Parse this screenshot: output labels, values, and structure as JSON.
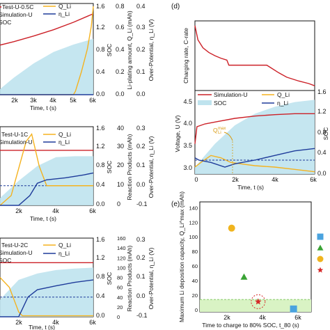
{
  "colors": {
    "red": "#cc2027",
    "orange": "#f5b21e",
    "navy": "#1e3b9a",
    "soc_fill": "#bfe3ee",
    "green_band": "#d9f3c4",
    "dashed": "#1e3b9a",
    "marker_square": "#4aa3df",
    "marker_triangle": "#3aa335",
    "marker_circle": "#f0b41e",
    "marker_star": "#d62a2a"
  },
  "chart_data": [
    {
      "panel_id": "a",
      "type": "line",
      "title": "",
      "legend": [
        "Test-U-0.5C",
        "Simulation-U",
        "SOC",
        "Q_Li",
        "η_Li"
      ],
      "xlabel": "Time, t (s)",
      "x_ticks": [
        "2k",
        "3k",
        "4k",
        "5k",
        "6k"
      ],
      "x_range": [
        1300,
        6000
      ],
      "y_axes": [
        {
          "label": "SOC",
          "ticks": [
            "0.0",
            "0.4",
            "0.8",
            "1.2",
            "1.6"
          ],
          "range": [
            0,
            1.6
          ]
        },
        {
          "label": "Li-plating amount, Q_Li (mAh)",
          "ticks": [
            "0.0",
            "0.2",
            "0.4",
            "0.6",
            "0.8"
          ],
          "range": [
            0,
            0.8
          ]
        },
        {
          "label": "Over-Potential, η_Li (V)",
          "ticks": [
            "0.0",
            "0.1",
            "0.2",
            "0.3",
            "0.4"
          ],
          "range": [
            0,
            0.4
          ]
        }
      ],
      "series": [
        {
          "name": "Simulation-U",
          "color": "red",
          "x": [
            1300,
            2000,
            3000,
            4000,
            5000,
            6000
          ],
          "y": [
            0.87,
            0.93,
            1.03,
            1.14,
            1.27,
            1.42
          ]
        },
        {
          "name": "Q_Li",
          "color": "orange",
          "x": [
            1300,
            4500,
            5000,
            5100,
            5400,
            5700,
            5900,
            6000
          ],
          "y": [
            0.0,
            0.0,
            0.0,
            0.06,
            0.4,
            0.8,
            1.2,
            1.55
          ]
        },
        {
          "name": "η_Li",
          "color": "navy",
          "x": [
            1300,
            2000,
            3000,
            4000,
            4500,
            5000,
            6000
          ],
          "y": [
            0.0,
            0.0,
            0.0,
            0.0,
            0.0,
            0.0,
            0.0
          ]
        },
        {
          "name": "SOC",
          "color": "soc_fill",
          "area": true,
          "x": [
            1300,
            2000,
            3000,
            4000,
            5000,
            6000
          ],
          "y": [
            0.1,
            0.3,
            0.55,
            0.75,
            0.88,
            0.98
          ]
        }
      ]
    },
    {
      "panel_id": "b",
      "type": "line",
      "title": "",
      "legend": [
        "Test-U-1C",
        "Simulation-U",
        "Q_Li",
        "η_Li"
      ],
      "xlabel": "Time, t (s)",
      "x_ticks": [
        "2k",
        "4k",
        "6k"
      ],
      "x_range": [
        1000,
        6000
      ],
      "y_axes": [
        {
          "label": "SOC",
          "ticks": [
            "0.0",
            "0.4",
            "0.8",
            "1.2",
            "1.6"
          ],
          "range": [
            0,
            1.6
          ]
        },
        {
          "label": "Reaction Products (mAh)",
          "ticks": [
            "0",
            "10",
            "20",
            "30",
            "40"
          ],
          "range": [
            0,
            40
          ]
        },
        {
          "label": "Over-Potential, η_Li (V)",
          "ticks": [
            "-0.1",
            "0.0",
            "0.1",
            "0.2",
            "0.3"
          ],
          "range": [
            -0.1,
            0.3
          ]
        }
      ],
      "series": [
        {
          "name": "Simulation-U",
          "color": "red",
          "x": [
            1000,
            6000
          ],
          "y": [
            1.12,
            1.12
          ]
        },
        {
          "name": "Q_Li",
          "color": "orange",
          "x": [
            1000,
            1600,
            2000,
            2400,
            2700,
            3100,
            3500,
            4000,
            6000
          ],
          "y": [
            0.0,
            0.2,
            0.75,
            1.3,
            1.45,
            0.8,
            0.4,
            0.4,
            0.4
          ]
        },
        {
          "name": "η_Li",
          "color": "navy",
          "x": [
            1000,
            2000,
            2600,
            3000,
            3500,
            4500,
            5500,
            6000
          ],
          "y": [
            0.0,
            0.0,
            0.2,
            0.45,
            0.52,
            0.56,
            0.62,
            0.66
          ]
        },
        {
          "name": "SOC",
          "color": "soc_fill",
          "area": true,
          "x": [
            1000,
            2000,
            3000,
            4000,
            5000,
            6000
          ],
          "y": [
            0.15,
            0.5,
            0.8,
            0.98,
            1.0,
            1.0
          ]
        },
        {
          "name": "dashed",
          "color": "dashed",
          "dashed": true,
          "x": [
            1000,
            6000
          ],
          "y": [
            0.4,
            0.4
          ]
        }
      ]
    },
    {
      "panel_id": "c",
      "type": "line",
      "title": "",
      "legend": [
        "Test-U-2C",
        "Simulation-U",
        "SOC",
        "Q_Li",
        "η_Li"
      ],
      "xlabel": "Time, t (s)",
      "x_ticks": [
        "2k",
        "4k",
        "6k"
      ],
      "x_range": [
        1000,
        6000
      ],
      "y_axes": [
        {
          "label": "SOC",
          "ticks": [
            "0.0",
            "0.4",
            "0.8",
            "1.2",
            "1.6"
          ],
          "range": [
            0,
            1.6
          ]
        },
        {
          "label": "Reaction Products (mAh)",
          "ticks": [
            "0",
            "20",
            "40",
            "60",
            "80",
            "100",
            "120",
            "140",
            "160"
          ],
          "range": [
            0,
            160
          ]
        },
        {
          "label": "Over-Potential, η_Li (V)",
          "ticks": [
            "-0.1",
            "0.0",
            "0.1",
            "0.2",
            "0.3"
          ],
          "range": [
            -0.1,
            0.3
          ]
        }
      ],
      "series": [
        {
          "name": "Simulation-U",
          "color": "red",
          "x": [
            1000,
            6000
          ],
          "y": [
            1.1,
            1.1
          ]
        },
        {
          "name": "Q_Li",
          "color": "orange",
          "x": [
            1000,
            1500,
            1800,
            2000,
            2200,
            6000
          ],
          "y": [
            0.8,
            0.6,
            0.3,
            0.1,
            0.02,
            0.02
          ]
        },
        {
          "name": "η_Li",
          "color": "navy",
          "x": [
            1000,
            2000,
            2500,
            3000,
            4000,
            5000,
            6000
          ],
          "y": [
            0.0,
            0.0,
            0.4,
            0.55,
            0.63,
            0.7,
            0.75
          ]
        },
        {
          "name": "SOC",
          "color": "soc_fill",
          "area": true,
          "x": [
            1000,
            2000,
            3000,
            4000,
            5000,
            6000
          ],
          "y": [
            0.35,
            0.75,
            0.88,
            0.95,
            0.98,
            1.0
          ]
        },
        {
          "name": "dashed",
          "color": "dashed",
          "dashed": true,
          "x": [
            1000,
            6000
          ],
          "y": [
            0.4,
            0.4
          ]
        }
      ]
    },
    {
      "panel_id": "d-top",
      "type": "line",
      "title": "",
      "xlabel": "",
      "ylabel": "Charging rate, C-rate",
      "x_range": [
        0,
        6000
      ],
      "y_range": [
        0,
        2.2
      ],
      "series": [
        {
          "name": "C-rate",
          "color": "red",
          "x": [
            0,
            150,
            400,
            700,
            1000,
            1300,
            1600,
            1700,
            3600,
            3800,
            4200,
            4600,
            5200,
            5700,
            6000
          ],
          "y": [
            2.05,
            1.6,
            1.35,
            1.2,
            1.1,
            1.02,
            0.96,
            0.8,
            0.8,
            0.72,
            0.56,
            0.42,
            0.3,
            0.22,
            0.15
          ]
        }
      ]
    },
    {
      "panel_id": "d-bottom",
      "type": "line",
      "title": "",
      "legend": [
        "Simulation-U",
        "SOC",
        "Q_Li",
        "η_Li"
      ],
      "annotation": "Q_Li^max",
      "xlabel": "Time, t (s)",
      "ylabel": "Voltage, U (V)",
      "x_ticks": [
        "0",
        "2k",
        "4k",
        "6k"
      ],
      "x_range": [
        0,
        6000
      ],
      "y_axes": [
        {
          "label": "Voltage, U (V)",
          "ticks": [
            "3.0",
            "3.5",
            "4.0",
            "4.5"
          ],
          "range": [
            2.9,
            4.7
          ]
        },
        {
          "label": "SOC",
          "ticks": [
            "0.0",
            "0.4",
            "0.8",
            "1.2",
            "1.6"
          ],
          "range": [
            0,
            1.6
          ]
        }
      ],
      "series": [
        {
          "name": "Simulation-U",
          "color": "red",
          "x": [
            0,
            100,
            500,
            1000,
            2000,
            3000,
            4000,
            5000,
            6000
          ],
          "y": [
            3.55,
            3.92,
            3.98,
            4.02,
            4.1,
            4.15,
            4.18,
            4.2,
            4.2
          ]
        },
        {
          "name": "Q_Li",
          "color": "orange",
          "x": [
            0,
            300,
            800,
            1300,
            1800,
            2300,
            3000,
            4000,
            5000,
            6000
          ],
          "y": [
            3.05,
            3.15,
            3.3,
            3.25,
            3.15,
            3.12,
            3.08,
            3.05,
            3.0,
            2.95
          ]
        },
        {
          "name": "η_Li",
          "color": "navy",
          "x": [
            0,
            200,
            800,
            1500,
            2000,
            3000,
            4000,
            5000,
            6000
          ],
          "y": [
            3.25,
            3.2,
            3.15,
            3.05,
            3.12,
            3.2,
            3.3,
            3.4,
            3.45
          ]
        },
        {
          "name": "SOC",
          "color": "soc_fill",
          "area": true,
          "x": [
            0,
            1000,
            2000,
            3000,
            4000,
            5000,
            6000
          ],
          "y": [
            3.05,
            3.55,
            3.95,
            4.2,
            4.35,
            4.45,
            4.5
          ]
        },
        {
          "name": "dashed",
          "color": "dashed",
          "dashed": true,
          "x": [
            0,
            6000
          ],
          "y": [
            3.2,
            3.2
          ]
        }
      ]
    },
    {
      "panel_id": "e",
      "type": "scatter",
      "title": "",
      "xlabel": "Time to charge to 80% SOC, t_80 (s)",
      "ylabel": "Maximum Li deposition capacity, Q_Li^max (mAh)",
      "x_ticks": [
        "2k",
        "4k",
        "6k"
      ],
      "x_range": [
        500,
        6800
      ],
      "y_ticks": [
        "0",
        "20",
        "40",
        "60",
        "80",
        "100",
        "120",
        "140"
      ],
      "y_range": [
        -3,
        148
      ],
      "green_band": [
        -3,
        14
      ],
      "points": [
        {
          "label": "circle",
          "x": 2300,
          "y": 112,
          "color": "marker_circle"
        },
        {
          "label": "triangle",
          "x": 3000,
          "y": 45,
          "color": "marker_triangle"
        },
        {
          "label": "star",
          "x": 3800,
          "y": 11,
          "color": "marker_star"
        },
        {
          "label": "square",
          "x": 5800,
          "y": 1,
          "color": "marker_square"
        }
      ],
      "legend_markers": [
        "square",
        "triangle",
        "circle",
        "star"
      ]
    }
  ],
  "labels": {
    "panel_d": "(d)",
    "panel_e": "(e)",
    "ann_qmax": "Q",
    "ann_qmax_sub": "Li",
    "ann_qmax_sup": "max"
  }
}
